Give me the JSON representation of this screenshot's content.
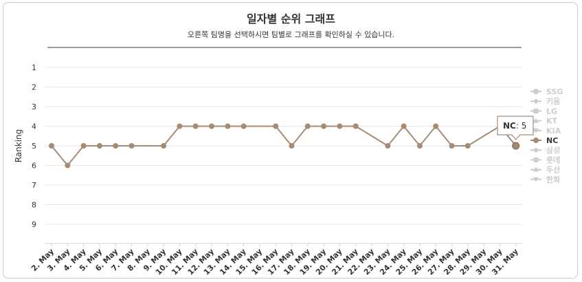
{
  "header": {
    "title": "일자별 순위 그래프",
    "subtitle": "오른쪽 팀명을 선택하시면 팀별로 그래프를 확인하실 수 있습니다."
  },
  "chart_data": {
    "type": "line",
    "ylabel": "Ranking",
    "ylim": [
      1,
      10
    ],
    "y_reversed": true,
    "y_ticks": [
      "1",
      "2",
      "3",
      "4",
      "5",
      "6",
      "7",
      "8",
      "9"
    ],
    "categories": [
      "2. May",
      "3. May",
      "4. May",
      "5. May",
      "6. May",
      "7. May",
      "8. May",
      "9. May",
      "10. May",
      "11. May",
      "12. May",
      "13. May",
      "14. May",
      "15. May",
      "16. May",
      "17. May",
      "18. May",
      "19. May",
      "20. May",
      "21. May",
      "22. May",
      "23. May",
      "24. May",
      "25. May",
      "26. May",
      "27. May",
      "28. May",
      "29. May",
      "30. May",
      "31. May"
    ],
    "series": [
      {
        "name": "NC",
        "color": "#a68b73",
        "values": [
          5,
          6,
          5,
          5,
          5,
          5,
          null,
          5,
          4,
          4,
          4,
          4,
          4,
          null,
          4,
          5,
          4,
          4,
          4,
          4,
          null,
          5,
          4,
          5,
          4,
          5,
          5,
          null,
          4,
          5
        ]
      }
    ],
    "legend": {
      "placement": "right",
      "items": [
        {
          "name": "SSG",
          "marker": "circle",
          "active": false
        },
        {
          "name": "키움",
          "marker": "diamond",
          "active": false
        },
        {
          "name": "LG",
          "marker": "square",
          "active": false
        },
        {
          "name": "KT",
          "marker": "triangle",
          "active": false
        },
        {
          "name": "KIA",
          "marker": "triangle-down",
          "active": false
        },
        {
          "name": "NC",
          "marker": "circle",
          "active": true
        },
        {
          "name": "삼성",
          "marker": "diamond",
          "active": false
        },
        {
          "name": "롯데",
          "marker": "square",
          "active": false
        },
        {
          "name": "두산",
          "marker": "triangle",
          "active": false
        },
        {
          "name": "한화",
          "marker": "triangle-down",
          "active": false
        }
      ]
    },
    "tooltip": {
      "series": "NC",
      "value": "5",
      "separator": ": "
    },
    "grid": true
  },
  "colors": {
    "line": "#a68b73",
    "legend_inactive": "#cccccc",
    "legend_active": "#333333",
    "grid": "#e6e6e6",
    "axis": "#333333"
  }
}
